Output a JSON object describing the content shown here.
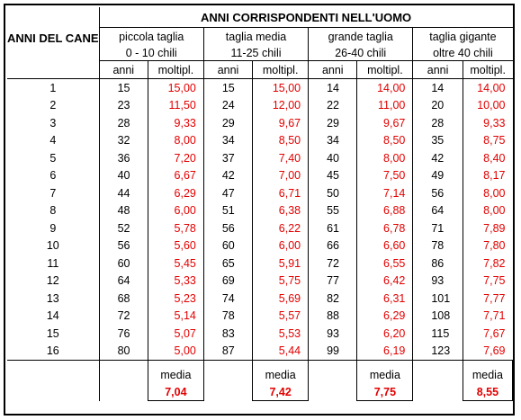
{
  "title": "ANNI CORRISPONDENTI NELL'UOMO",
  "dog_header": "ANNI DEL CANE",
  "groups": [
    {
      "name": "piccola taglia",
      "range": "0 - 10 chili"
    },
    {
      "name": "taglia media",
      "range": "11-25 chili"
    },
    {
      "name": "grande taglia",
      "range": "26-40 chili"
    },
    {
      "name": "taglia gigante",
      "range": "oltre 40 chili"
    }
  ],
  "sub_headers": {
    "anni": "anni",
    "moltipl": "moltipl."
  },
  "rows": [
    {
      "dog": "1",
      "cells": [
        [
          "15",
          "15,00"
        ],
        [
          "15",
          "15,00"
        ],
        [
          "14",
          "14,00"
        ],
        [
          "14",
          "14,00"
        ]
      ]
    },
    {
      "dog": "2",
      "cells": [
        [
          "23",
          "11,50"
        ],
        [
          "24",
          "12,00"
        ],
        [
          "22",
          "11,00"
        ],
        [
          "20",
          "10,00"
        ]
      ]
    },
    {
      "dog": "3",
      "cells": [
        [
          "28",
          "9,33"
        ],
        [
          "29",
          "9,67"
        ],
        [
          "29",
          "9,67"
        ],
        [
          "28",
          "9,33"
        ]
      ]
    },
    {
      "dog": "4",
      "cells": [
        [
          "32",
          "8,00"
        ],
        [
          "34",
          "8,50"
        ],
        [
          "34",
          "8,50"
        ],
        [
          "35",
          "8,75"
        ]
      ]
    },
    {
      "dog": "5",
      "cells": [
        [
          "36",
          "7,20"
        ],
        [
          "37",
          "7,40"
        ],
        [
          "40",
          "8,00"
        ],
        [
          "42",
          "8,40"
        ]
      ]
    },
    {
      "dog": "6",
      "cells": [
        [
          "40",
          "6,67"
        ],
        [
          "42",
          "7,00"
        ],
        [
          "45",
          "7,50"
        ],
        [
          "49",
          "8,17"
        ]
      ]
    },
    {
      "dog": "7",
      "cells": [
        [
          "44",
          "6,29"
        ],
        [
          "47",
          "6,71"
        ],
        [
          "50",
          "7,14"
        ],
        [
          "56",
          "8,00"
        ]
      ]
    },
    {
      "dog": "8",
      "cells": [
        [
          "48",
          "6,00"
        ],
        [
          "51",
          "6,38"
        ],
        [
          "55",
          "6,88"
        ],
        [
          "64",
          "8,00"
        ]
      ]
    },
    {
      "dog": "9",
      "cells": [
        [
          "52",
          "5,78"
        ],
        [
          "56",
          "6,22"
        ],
        [
          "61",
          "6,78"
        ],
        [
          "71",
          "7,89"
        ]
      ]
    },
    {
      "dog": "10",
      "cells": [
        [
          "56",
          "5,60"
        ],
        [
          "60",
          "6,00"
        ],
        [
          "66",
          "6,60"
        ],
        [
          "78",
          "7,80"
        ]
      ]
    },
    {
      "dog": "11",
      "cells": [
        [
          "60",
          "5,45"
        ],
        [
          "65",
          "5,91"
        ],
        [
          "72",
          "6,55"
        ],
        [
          "86",
          "7,82"
        ]
      ]
    },
    {
      "dog": "12",
      "cells": [
        [
          "64",
          "5,33"
        ],
        [
          "69",
          "5,75"
        ],
        [
          "77",
          "6,42"
        ],
        [
          "93",
          "7,75"
        ]
      ]
    },
    {
      "dog": "13",
      "cells": [
        [
          "68",
          "5,23"
        ],
        [
          "74",
          "5,69"
        ],
        [
          "82",
          "6,31"
        ],
        [
          "101",
          "7,77"
        ]
      ]
    },
    {
      "dog": "14",
      "cells": [
        [
          "72",
          "5,14"
        ],
        [
          "78",
          "5,57"
        ],
        [
          "88",
          "6,29"
        ],
        [
          "108",
          "7,71"
        ]
      ]
    },
    {
      "dog": "15",
      "cells": [
        [
          "76",
          "5,07"
        ],
        [
          "83",
          "5,53"
        ],
        [
          "93",
          "6,20"
        ],
        [
          "115",
          "7,67"
        ]
      ]
    },
    {
      "dog": "16",
      "cells": [
        [
          "80",
          "5,00"
        ],
        [
          "87",
          "5,44"
        ],
        [
          "99",
          "6,19"
        ],
        [
          "123",
          "7,69"
        ]
      ]
    }
  ],
  "media_label": "media",
  "medias": [
    "7,04",
    "7,42",
    "7,75",
    "8,55"
  ]
}
